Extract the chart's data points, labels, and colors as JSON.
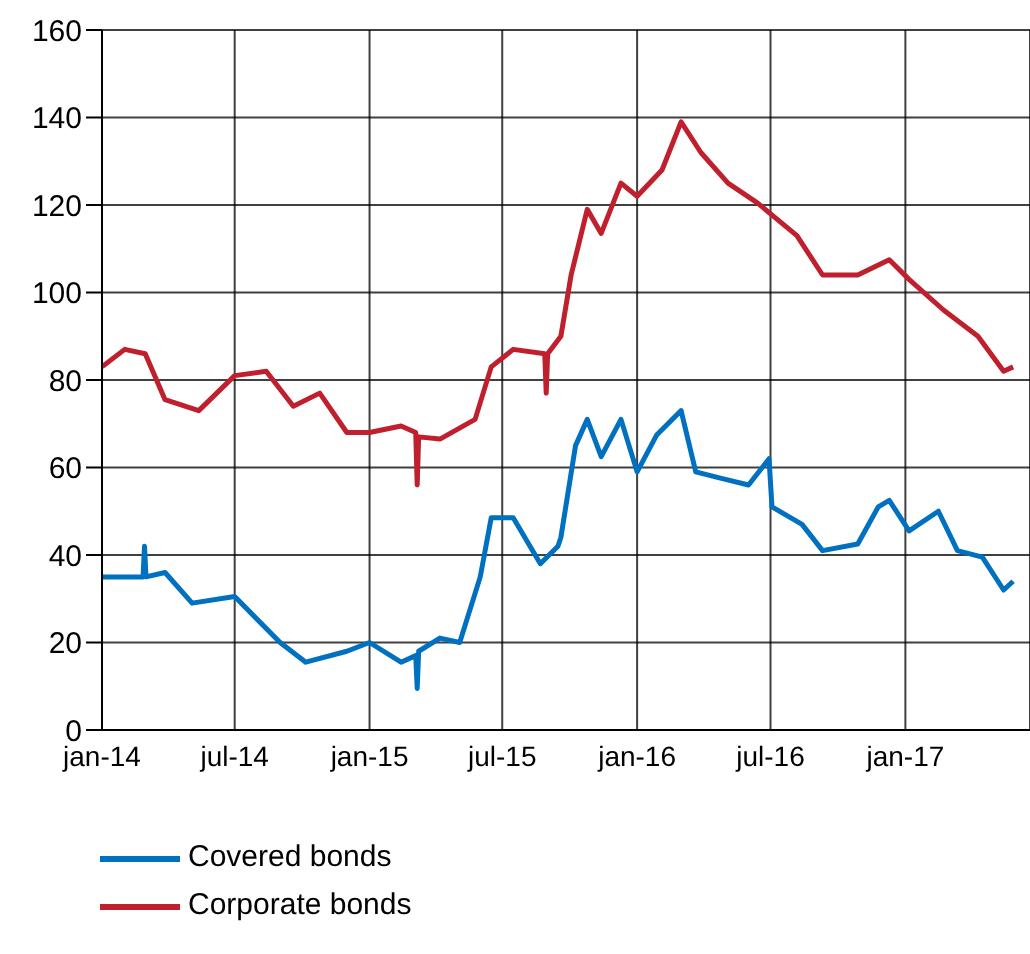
{
  "chart_data": {
    "type": "line",
    "xlim": [
      "2014-01-01",
      "2017-06-20"
    ],
    "ylim": [
      0,
      160
    ],
    "yticks": [
      0,
      20,
      40,
      60,
      80,
      100,
      120,
      140,
      160
    ],
    "xticks": [
      {
        "value": "2014-01-01",
        "label": "jan-14"
      },
      {
        "value": "2014-07-01",
        "label": "jul-14"
      },
      {
        "value": "2015-01-01",
        "label": "jan-15"
      },
      {
        "value": "2015-07-01",
        "label": "jul-15"
      },
      {
        "value": "2016-01-01",
        "label": "jan-16"
      },
      {
        "value": "2016-07-01",
        "label": "jul-16"
      },
      {
        "value": "2017-01-01",
        "label": "jan-17"
      }
    ],
    "grid": true,
    "legend": "bottom left",
    "marker": "none",
    "line_style": "solid",
    "series": [
      {
        "name": "Covered bonds",
        "color": "#0070c0",
        "x": [
          "2014-01-01",
          "2014-02-26",
          "2014-02-28",
          "2014-03-02",
          "2014-03-28",
          "2014-05-04",
          "2014-07-01",
          "2014-09-01",
          "2014-10-06",
          "2014-12-01",
          "2015-01-01",
          "2015-02-13",
          "2015-03-05",
          "2015-03-07",
          "2015-03-09",
          "2015-04-07",
          "2015-05-04",
          "2015-06-01",
          "2015-06-16",
          "2015-07-16",
          "2015-08-22",
          "2015-09-15",
          "2015-09-19",
          "2015-10-09",
          "2015-10-25",
          "2015-11-13",
          "2015-12-10",
          "2016-01-01",
          "2016-01-28",
          "2016-03-01",
          "2016-03-21",
          "2016-04-25",
          "2016-06-01",
          "2016-06-29",
          "2016-07-03",
          "2016-08-13",
          "2016-09-10",
          "2016-10-28",
          "2016-11-25",
          "2016-12-10",
          "2017-01-06",
          "2017-02-15",
          "2017-03-13",
          "2017-04-16",
          "2017-05-15",
          "2017-05-28"
        ],
        "values": [
          35,
          35,
          42,
          35,
          36,
          29,
          30.5,
          20,
          15.5,
          18,
          20,
          15.5,
          17,
          9.5,
          18,
          21,
          20,
          35,
          48.5,
          48.5,
          38,
          42,
          44,
          65,
          71,
          62.5,
          71,
          59,
          67.5,
          73,
          59,
          57.5,
          56,
          62,
          51,
          47,
          41,
          42.5,
          51,
          52.5,
          45.5,
          50,
          41,
          39.5,
          32,
          34
        ]
      },
      {
        "name": "Corporate bonds",
        "color": "#c0202e",
        "x": [
          "2014-01-01",
          "2014-02-01",
          "2014-03-01",
          "2014-03-28",
          "2014-05-13",
          "2014-07-01",
          "2014-08-13",
          "2014-09-19",
          "2014-10-25",
          "2014-12-01",
          "2015-01-01",
          "2015-02-13",
          "2015-03-05",
          "2015-03-07",
          "2015-03-09",
          "2015-04-07",
          "2015-05-25",
          "2015-06-16",
          "2015-07-16",
          "2015-08-28",
          "2015-08-30",
          "2015-09-01",
          "2015-09-19",
          "2015-10-03",
          "2015-10-25",
          "2015-11-13",
          "2015-12-10",
          "2016-01-01",
          "2016-02-04",
          "2016-03-01",
          "2016-03-28",
          "2016-05-04",
          "2016-06-13",
          "2016-08-06",
          "2016-09-10",
          "2016-10-28",
          "2016-12-10",
          "2017-01-06",
          "2017-02-22",
          "2017-04-10",
          "2017-05-15",
          "2017-05-28"
        ],
        "values": [
          83,
          87,
          86,
          75.5,
          73,
          81,
          82,
          74,
          77,
          68,
          68,
          69.5,
          68,
          56,
          67,
          66.5,
          71,
          83,
          87,
          86,
          77,
          86,
          90,
          104,
          119,
          113.5,
          125,
          122,
          128,
          139,
          132,
          125,
          120.5,
          113,
          104,
          104,
          107.5,
          103,
          96,
          90,
          82,
          83
        ]
      }
    ]
  }
}
